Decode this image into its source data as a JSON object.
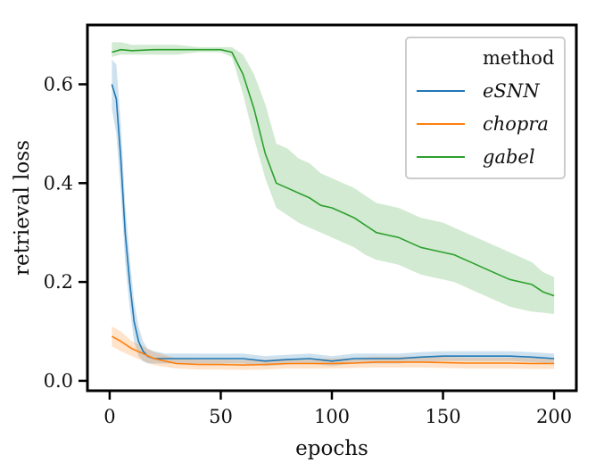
{
  "chart_data": {
    "type": "line",
    "xlabel": "epochs",
    "ylabel": "retrieval loss",
    "xlim": [
      -10,
      210
    ],
    "ylim": [
      -0.02,
      0.72
    ],
    "xticks": [
      0,
      50,
      100,
      150,
      200
    ],
    "yticks": [
      0.0,
      0.2,
      0.4,
      0.6
    ],
    "xtick_labels": [
      "0",
      "50",
      "100",
      "150",
      "200"
    ],
    "ytick_labels": [
      "0.0",
      "0.2",
      "0.4",
      "0.6"
    ],
    "grid": false,
    "legend": {
      "title": "method",
      "placement": "top-right",
      "entries": [
        "eSNN",
        "chopra",
        "gabel"
      ]
    },
    "series": [
      {
        "name": "eSNN",
        "color": "#1f77b4",
        "x": [
          1,
          3,
          5,
          7,
          9,
          11,
          13,
          15,
          17,
          20,
          25,
          30,
          40,
          50,
          60,
          70,
          80,
          90,
          100,
          110,
          120,
          130,
          140,
          150,
          160,
          170,
          180,
          190,
          200
        ],
        "y": [
          0.6,
          0.57,
          0.45,
          0.3,
          0.2,
          0.12,
          0.08,
          0.06,
          0.05,
          0.045,
          0.045,
          0.045,
          0.045,
          0.045,
          0.045,
          0.04,
          0.043,
          0.045,
          0.04,
          0.045,
          0.045,
          0.045,
          0.048,
          0.05,
          0.05,
          0.05,
          0.05,
          0.048,
          0.045
        ],
        "band_lower": [
          0.55,
          0.5,
          0.38,
          0.24,
          0.15,
          0.08,
          0.05,
          0.04,
          0.035,
          0.035,
          0.035,
          0.035,
          0.035,
          0.035,
          0.035,
          0.03,
          0.033,
          0.035,
          0.03,
          0.035,
          0.035,
          0.035,
          0.038,
          0.04,
          0.04,
          0.04,
          0.04,
          0.038,
          0.035
        ],
        "band_upper": [
          0.65,
          0.64,
          0.52,
          0.36,
          0.25,
          0.16,
          0.11,
          0.08,
          0.065,
          0.06,
          0.055,
          0.055,
          0.055,
          0.055,
          0.055,
          0.05,
          0.053,
          0.055,
          0.05,
          0.055,
          0.055,
          0.055,
          0.058,
          0.06,
          0.06,
          0.06,
          0.06,
          0.058,
          0.055
        ]
      },
      {
        "name": "chopra",
        "color": "#ff7f0e",
        "x": [
          1,
          5,
          10,
          15,
          20,
          25,
          30,
          40,
          50,
          60,
          70,
          80,
          90,
          100,
          110,
          120,
          130,
          140,
          150,
          160,
          170,
          180,
          190,
          200
        ],
        "y": [
          0.09,
          0.08,
          0.065,
          0.055,
          0.045,
          0.04,
          0.035,
          0.033,
          0.033,
          0.032,
          0.033,
          0.035,
          0.035,
          0.035,
          0.036,
          0.038,
          0.038,
          0.038,
          0.037,
          0.036,
          0.036,
          0.036,
          0.035,
          0.035
        ],
        "band_lower": [
          0.07,
          0.06,
          0.05,
          0.04,
          0.032,
          0.028,
          0.025,
          0.023,
          0.023,
          0.022,
          0.023,
          0.025,
          0.025,
          0.025,
          0.026,
          0.027,
          0.027,
          0.027,
          0.026,
          0.025,
          0.025,
          0.025,
          0.024,
          0.024
        ],
        "band_upper": [
          0.11,
          0.1,
          0.08,
          0.07,
          0.058,
          0.052,
          0.045,
          0.043,
          0.043,
          0.042,
          0.043,
          0.045,
          0.045,
          0.045,
          0.046,
          0.049,
          0.049,
          0.049,
          0.048,
          0.047,
          0.047,
          0.047,
          0.046,
          0.046
        ]
      },
      {
        "name": "gabel",
        "color": "#2ca02c",
        "x": [
          1,
          5,
          10,
          20,
          30,
          40,
          50,
          55,
          60,
          65,
          70,
          75,
          80,
          85,
          90,
          95,
          100,
          105,
          110,
          115,
          120,
          125,
          130,
          135,
          140,
          145,
          150,
          155,
          160,
          165,
          170,
          175,
          180,
          185,
          190,
          195,
          200
        ],
        "y": [
          0.665,
          0.67,
          0.668,
          0.67,
          0.67,
          0.67,
          0.67,
          0.665,
          0.62,
          0.55,
          0.46,
          0.4,
          0.39,
          0.38,
          0.37,
          0.355,
          0.35,
          0.34,
          0.33,
          0.315,
          0.3,
          0.295,
          0.29,
          0.28,
          0.27,
          0.265,
          0.26,
          0.255,
          0.245,
          0.235,
          0.225,
          0.215,
          0.205,
          0.2,
          0.195,
          0.18,
          0.172
        ],
        "band_lower": [
          0.655,
          0.66,
          0.66,
          0.66,
          0.66,
          0.665,
          0.665,
          0.655,
          0.58,
          0.49,
          0.41,
          0.35,
          0.335,
          0.32,
          0.31,
          0.3,
          0.29,
          0.28,
          0.27,
          0.255,
          0.245,
          0.24,
          0.235,
          0.225,
          0.215,
          0.21,
          0.205,
          0.2,
          0.19,
          0.18,
          0.17,
          0.16,
          0.15,
          0.145,
          0.14,
          0.138,
          0.135
        ],
        "band_upper": [
          0.685,
          0.685,
          0.68,
          0.68,
          0.68,
          0.675,
          0.675,
          0.675,
          0.66,
          0.62,
          0.56,
          0.48,
          0.47,
          0.45,
          0.44,
          0.42,
          0.41,
          0.4,
          0.39,
          0.375,
          0.36,
          0.355,
          0.35,
          0.34,
          0.33,
          0.325,
          0.32,
          0.31,
          0.3,
          0.29,
          0.28,
          0.27,
          0.26,
          0.25,
          0.24,
          0.22,
          0.21
        ]
      }
    ]
  }
}
